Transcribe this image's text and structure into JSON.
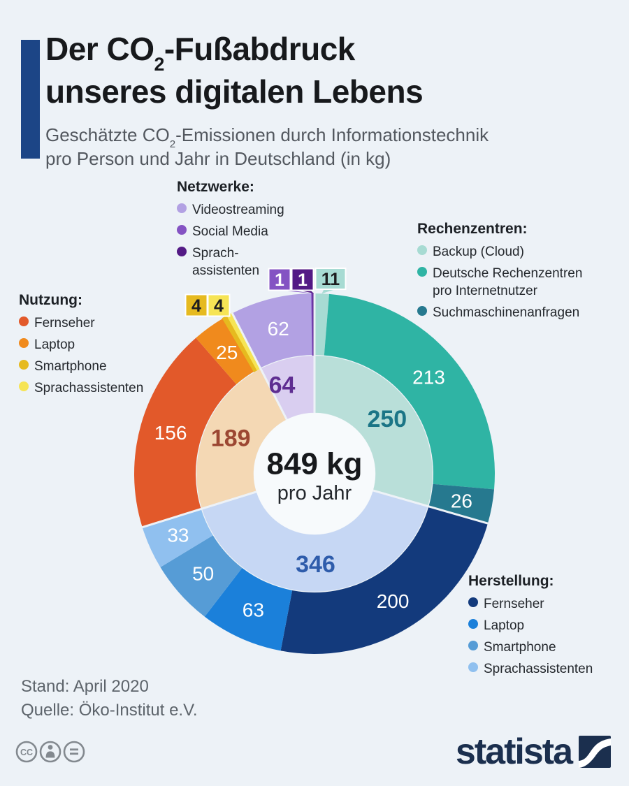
{
  "page": {
    "background": "#edf2f7"
  },
  "header": {
    "accent_color": "#1c4586",
    "title": {
      "prefix": "Der CO",
      "subscript": "2",
      "suffix": "-Fußabdruck",
      "line2": "unseres digitalen Lebens"
    },
    "subtitle": {
      "prefix": "Geschätzte CO",
      "subscript": "2",
      "suffix": "-Emissionen durch Informationstechnik",
      "line2": "pro Person und Jahr in Deutschland (in kg)"
    }
  },
  "legends": [
    {
      "id": "netzwerke",
      "title": "Netzwerke:",
      "items": [
        {
          "label": "Videostreaming",
          "color": "#b2a1e3"
        },
        {
          "label": "Social Media",
          "color": "#8453c3"
        },
        {
          "label": "Sprach-\nassistenten",
          "color": "#531a85"
        }
      ]
    },
    {
      "id": "rechenzentren",
      "title": "Rechenzentren:",
      "items": [
        {
          "label": "Backup (Cloud)",
          "color": "#a7dbd3"
        },
        {
          "label": "Deutsche Rechenzentren\npro Internetnutzer",
          "color": "#2fb4a4"
        },
        {
          "label": "Suchmaschinenanfragen",
          "color": "#26798f"
        }
      ]
    },
    {
      "id": "nutzung",
      "title": "Nutzung:",
      "items": [
        {
          "label": "Fernseher",
          "color": "#e2592a"
        },
        {
          "label": "Laptop",
          "color": "#f08a1d"
        },
        {
          "label": "Smartphone",
          "color": "#e6ba1f"
        },
        {
          "label": "Sprachassistenten",
          "color": "#f6e455"
        }
      ]
    },
    {
      "id": "herstellung",
      "title": "Herstellung:",
      "items": [
        {
          "label": "Fernseher",
          "color": "#133a7c"
        },
        {
          "label": "Laptop",
          "color": "#1b80da"
        },
        {
          "label": "Smartphone",
          "color": "#569cd6"
        },
        {
          "label": "Sprachassistenten",
          "color": "#90c0ef"
        }
      ]
    }
  ],
  "chart_data": {
    "type": "pie",
    "subtype": "double-ring-donut",
    "title": "CO2-Emissionen durch Informationstechnik pro Person und Jahr in Deutschland (in kg)",
    "total": 849,
    "center_label": "849 kg",
    "center_sublabel": "pro Jahr",
    "start_angle_deg": 0,
    "direction": "clockwise",
    "inner_ring": [
      {
        "name": "Rechenzentren",
        "value": 250,
        "color": "#b9dfd9",
        "label_color": "#1b7586"
      },
      {
        "name": "Herstellung",
        "value": 346,
        "color": "#c6d7f4",
        "label_color": "#2e5cab"
      },
      {
        "name": "Nutzung",
        "value": 189,
        "color": "#f4d8b4",
        "label_color": "#9c4732"
      },
      {
        "name": "Netzwerke",
        "value": 64,
        "color": "#d9cef0",
        "label_color": "#5e2d91"
      }
    ],
    "outer_ring": [
      {
        "group": "Rechenzentren",
        "name": "Backup (Cloud)",
        "value": 11,
        "color": "#a7dbd3",
        "callout": true,
        "text_color": "#1d1d1f"
      },
      {
        "group": "Rechenzentren",
        "name": "Deutsche Rechenzentren pro Internetnutzer",
        "value": 213,
        "color": "#2fb4a4"
      },
      {
        "group": "Rechenzentren",
        "name": "Suchmaschinenanfragen",
        "value": 26,
        "color": "#26798f"
      },
      {
        "group": "Herstellung",
        "name": "Fernseher",
        "value": 200,
        "color": "#133a7c"
      },
      {
        "group": "Herstellung",
        "name": "Laptop",
        "value": 63,
        "color": "#1b80da"
      },
      {
        "group": "Herstellung",
        "name": "Smartphone",
        "value": 50,
        "color": "#569cd6"
      },
      {
        "group": "Herstellung",
        "name": "Sprachassistenten",
        "value": 33,
        "color": "#90c0ef"
      },
      {
        "group": "Nutzung",
        "name": "Fernseher",
        "value": 156,
        "color": "#e2592a"
      },
      {
        "group": "Nutzung",
        "name": "Laptop",
        "value": 25,
        "color": "#f08a1d"
      },
      {
        "group": "Nutzung",
        "name": "Smartphone",
        "value": 4,
        "color": "#e6ba1f",
        "callout": true,
        "text_color": "#1d1d1f"
      },
      {
        "group": "Nutzung",
        "name": "Sprachassistenten",
        "value": 4,
        "color": "#f6e455",
        "callout": true,
        "text_color": "#1d1d1f"
      },
      {
        "group": "Netzwerke",
        "name": "Videostreaming",
        "value": 62,
        "color": "#b2a1e3"
      },
      {
        "group": "Netzwerke",
        "name": "Social Media",
        "value": 1,
        "color": "#8453c3",
        "callout": true,
        "text_color": "#ffffff"
      },
      {
        "group": "Netzwerke",
        "name": "Sprachassistenten",
        "value": 1,
        "color": "#531a85",
        "callout": true,
        "text_color": "#ffffff"
      }
    ]
  },
  "footer": {
    "stand": "Stand: April 2020",
    "quelle": "Quelle: Öko-Institut e.V."
  },
  "branding": {
    "logo_text": "statista",
    "logo_color": "#1b2f4e",
    "license_icons": [
      "cc",
      "by",
      "nd"
    ]
  }
}
